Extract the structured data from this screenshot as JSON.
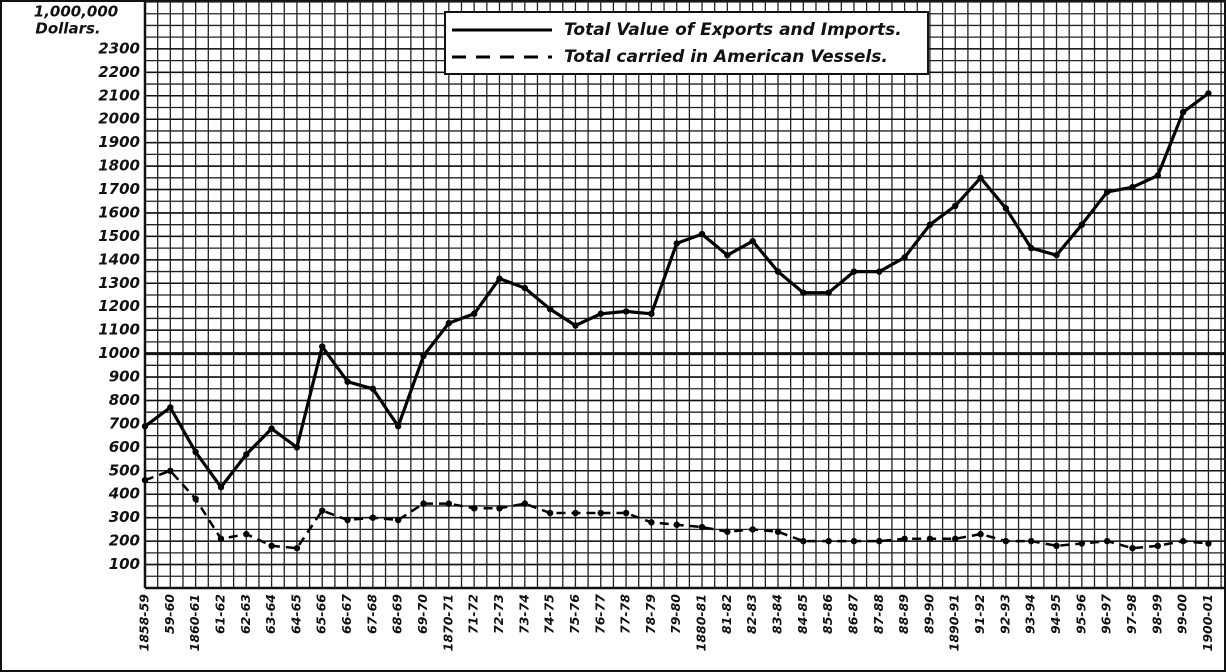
{
  "chart_data": {
    "type": "line",
    "y_label": [
      "1,000,000",
      "Dollars."
    ],
    "categories": [
      "1858-59",
      "59-60",
      "1860-61",
      "61-62",
      "62-63",
      "63-64",
      "64-65",
      "65-66",
      "66-67",
      "67-68",
      "68-69",
      "69-70",
      "1870-71",
      "71-72",
      "72-73",
      "73-74",
      "74-75",
      "75-76",
      "76-77",
      "77-78",
      "78-79",
      "79-80",
      "1880-81",
      "81-82",
      "82-83",
      "83-84",
      "84-85",
      "85-86",
      "86-87",
      "87-88",
      "88-89",
      "89-90",
      "1890-91",
      "91-92",
      "92-93",
      "93-94",
      "94-95",
      "95-96",
      "96-97",
      "97-98",
      "98-99",
      "99-00",
      "1900-01"
    ],
    "series": [
      {
        "name": "Total Value of Exports and Imports.",
        "color": "#000000",
        "dash": false,
        "values": [
          690,
          770,
          580,
          430,
          570,
          680,
          600,
          1030,
          880,
          850,
          690,
          990,
          1130,
          1170,
          1320,
          1280,
          1190,
          1120,
          1170,
          1180,
          1170,
          1470,
          1510,
          1420,
          1480,
          1350,
          1260,
          1260,
          1350,
          1350,
          1410,
          1550,
          1630,
          1750,
          1620,
          1450,
          1420,
          1550,
          1690,
          1710,
          1760,
          2030,
          2110
        ]
      },
      {
        "name": "Total carried in American Vessels.",
        "color": "#000000",
        "dash": true,
        "values": [
          460,
          500,
          380,
          210,
          230,
          180,
          170,
          330,
          290,
          300,
          290,
          360,
          360,
          340,
          340,
          360,
          320,
          320,
          320,
          320,
          280,
          270,
          260,
          240,
          250,
          240,
          200,
          200,
          200,
          200,
          210,
          210,
          210,
          230,
          200,
          200,
          180,
          190,
          200,
          170,
          180,
          200,
          190
        ]
      }
    ],
    "ylim": [
      0,
      2500
    ],
    "yticks": [
      100,
      200,
      300,
      400,
      500,
      600,
      700,
      800,
      900,
      1000,
      1100,
      1200,
      1300,
      1400,
      1500,
      1600,
      1700,
      1800,
      1900,
      2000,
      2100,
      2200,
      2300
    ],
    "highlight_ytick": 1000,
    "grid": true,
    "legend": "top"
  }
}
